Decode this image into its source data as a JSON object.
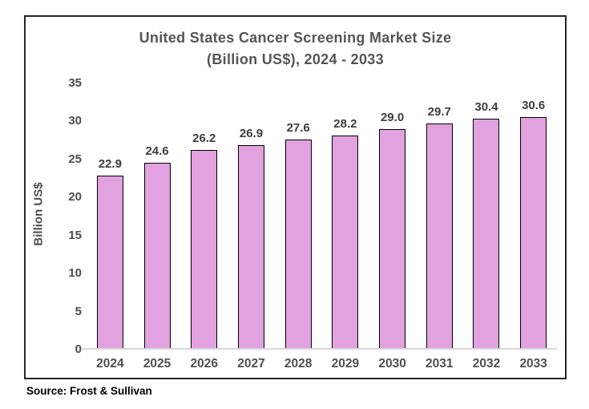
{
  "chart_data": {
    "type": "bar",
    "title": "United States Cancer Screening Market Size (Billion US$), 2024 - 2033",
    "title_lines": [
      "United States Cancer Screening Market Size",
      "(Billion US$), 2024 - 2033"
    ],
    "categories": [
      "2024",
      "2025",
      "2026",
      "2027",
      "2028",
      "2029",
      "2030",
      "2031",
      "2032",
      "2033"
    ],
    "values": [
      22.9,
      24.6,
      26.2,
      26.9,
      27.6,
      28.2,
      29.0,
      29.7,
      30.4,
      30.6
    ],
    "value_labels": [
      "22.9",
      "24.6",
      "26.2",
      "26.9",
      "27.6",
      "28.2",
      "29.0",
      "29.7",
      "30.4",
      "30.6"
    ],
    "xlabel": "",
    "ylabel": "Billion US$",
    "ylim": [
      0,
      35
    ],
    "yticks": [
      0,
      5,
      10,
      15,
      20,
      25,
      30,
      35
    ],
    "grid": false,
    "legend_position": "none",
    "bar_color": "#e2a2df",
    "bar_border_color": "#000000",
    "axis_line_color": "#d9d9d9",
    "frame_color": "#25252e",
    "title_color": "#555555",
    "label_color": "#3d3d3d"
  },
  "source": {
    "text": "Source: Frost & Sullivan"
  }
}
